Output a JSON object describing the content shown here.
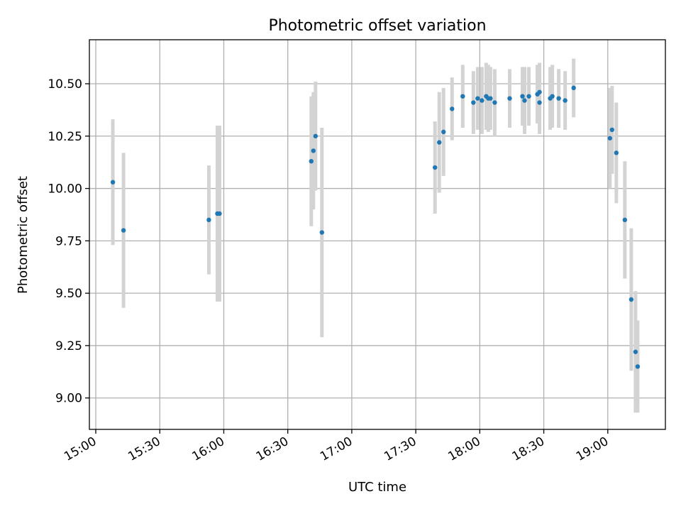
{
  "chart_data": {
    "type": "scatter",
    "title": "Photometric offset variation",
    "xlabel": "UTC time",
    "ylabel": "Photometric offset",
    "x_ticks": [
      "15:00",
      "15:30",
      "16:00",
      "16:30",
      "17:00",
      "17:30",
      "18:00",
      "18:30",
      "19:00"
    ],
    "y_ticks": [
      "9.00",
      "9.25",
      "9.50",
      "9.75",
      "10.00",
      "10.25",
      "10.50"
    ],
    "xlim": [
      "14:57",
      "19:27"
    ],
    "ylim": [
      8.85,
      10.71
    ],
    "grid": true,
    "marker_color": "#1f77b4",
    "errorbar_color": "#d3d3d3",
    "series": [
      {
        "points": [
          {
            "x": "15:08",
            "y": 10.03,
            "err": 0.3
          },
          {
            "x": "15:13",
            "y": 9.8,
            "err": 0.37
          },
          {
            "x": "15:53",
            "y": 9.85,
            "err": 0.26
          },
          {
            "x": "15:57",
            "y": 9.88,
            "err": 0.42
          },
          {
            "x": "15:58",
            "y": 9.88,
            "err": 0.42
          },
          {
            "x": "16:41",
            "y": 10.13,
            "err": 0.31
          },
          {
            "x": "16:42",
            "y": 10.18,
            "err": 0.28
          },
          {
            "x": "16:43",
            "y": 10.25,
            "err": 0.26
          },
          {
            "x": "16:46",
            "y": 9.79,
            "err": 0.5
          },
          {
            "x": "17:39",
            "y": 10.1,
            "err": 0.22
          },
          {
            "x": "17:41",
            "y": 10.22,
            "err": 0.24
          },
          {
            "x": "17:43",
            "y": 10.27,
            "err": 0.21
          },
          {
            "x": "17:47",
            "y": 10.38,
            "err": 0.15
          },
          {
            "x": "17:52",
            "y": 10.44,
            "err": 0.15
          },
          {
            "x": "17:57",
            "y": 10.41,
            "err": 0.15
          },
          {
            "x": "17:59",
            "y": 10.43,
            "err": 0.15
          },
          {
            "x": "18:01",
            "y": 10.42,
            "err": 0.16
          },
          {
            "x": "18:03",
            "y": 10.44,
            "err": 0.16
          },
          {
            "x": "18:04",
            "y": 10.43,
            "err": 0.16
          },
          {
            "x": "18:05",
            "y": 10.43,
            "err": 0.15
          },
          {
            "x": "18:07",
            "y": 10.41,
            "err": 0.16
          },
          {
            "x": "18:14",
            "y": 10.43,
            "err": 0.14
          },
          {
            "x": "18:20",
            "y": 10.44,
            "err": 0.14
          },
          {
            "x": "18:21",
            "y": 10.42,
            "err": 0.16
          },
          {
            "x": "18:23",
            "y": 10.44,
            "err": 0.14
          },
          {
            "x": "18:27",
            "y": 10.45,
            "err": 0.14
          },
          {
            "x": "18:28",
            "y": 10.46,
            "err": 0.14
          },
          {
            "x": "18:28",
            "y": 10.41,
            "err": 0.15
          },
          {
            "x": "18:33",
            "y": 10.43,
            "err": 0.15
          },
          {
            "x": "18:34",
            "y": 10.44,
            "err": 0.15
          },
          {
            "x": "18:37",
            "y": 10.43,
            "err": 0.14
          },
          {
            "x": "18:40",
            "y": 10.42,
            "err": 0.14
          },
          {
            "x": "18:44",
            "y": 10.48,
            "err": 0.14
          },
          {
            "x": "19:01",
            "y": 10.24,
            "err": 0.24
          },
          {
            "x": "19:02",
            "y": 10.28,
            "err": 0.21
          },
          {
            "x": "19:04",
            "y": 10.17,
            "err": 0.24
          },
          {
            "x": "19:08",
            "y": 9.85,
            "err": 0.28
          },
          {
            "x": "19:11",
            "y": 9.47,
            "err": 0.34
          },
          {
            "x": "19:13",
            "y": 9.22,
            "err": 0.29
          },
          {
            "x": "19:14",
            "y": 9.15,
            "err": 0.22
          }
        ]
      }
    ]
  }
}
